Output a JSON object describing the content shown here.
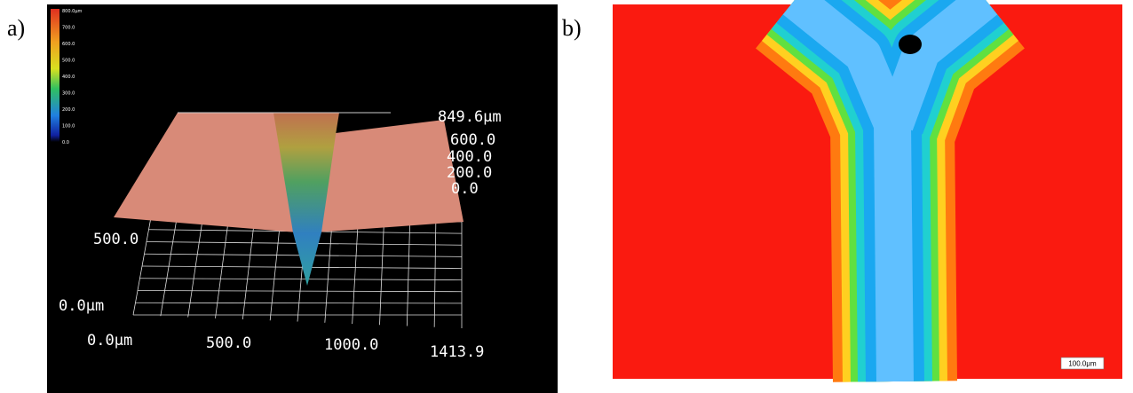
{
  "panels": [
    {
      "label": "a)",
      "colorbar": [
        "800.0μm",
        "700.0",
        "600.0",
        "500.0",
        "400.0",
        "300.0",
        "200.0",
        "100.0",
        "0.0"
      ],
      "z_axis": [
        "849.6μm",
        "600.0",
        "400.0",
        "200.0",
        "0.0"
      ],
      "y_axis": [
        "500.0",
        "0.0μm"
      ],
      "x_axis": [
        "0.0μm",
        "500.0",
        "1000.0",
        "1413.9"
      ]
    },
    {
      "label": "b)",
      "scale_bar": "100.0μm"
    }
  ]
}
